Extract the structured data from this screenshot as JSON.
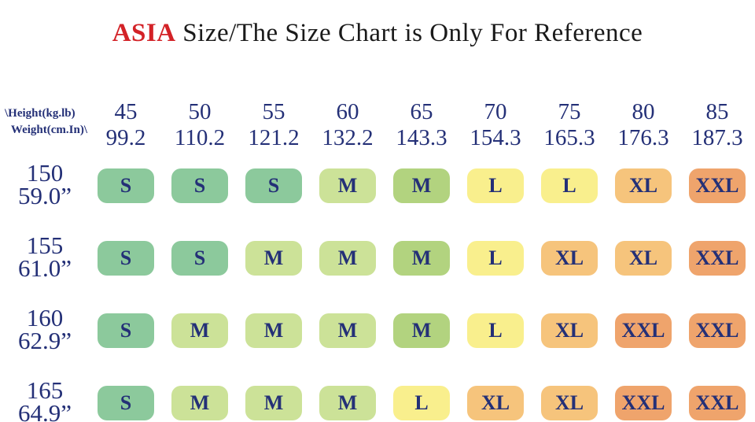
{
  "title": {
    "accent": "ASIA",
    "text": " Size/The Size Chart is Only For Reference"
  },
  "table": {
    "corner": {
      "line1": "\\Height(kg.lb)",
      "line2": "Weight(cm.In)\\"
    },
    "columns": [
      {
        "kg": "45",
        "lb": "99.2"
      },
      {
        "kg": "50",
        "lb": "110.2"
      },
      {
        "kg": "55",
        "lb": "121.2"
      },
      {
        "kg": "60",
        "lb": "132.2"
      },
      {
        "kg": "65",
        "lb": "143.3"
      },
      {
        "kg": "70",
        "lb": "154.3"
      },
      {
        "kg": "75",
        "lb": "165.3"
      },
      {
        "kg": "80",
        "lb": "176.3"
      },
      {
        "kg": "85",
        "lb": "187.3"
      }
    ],
    "rows": [
      {
        "cm": "150",
        "inch": "59.0”",
        "sizes": [
          "S",
          "S",
          "S",
          "M",
          "M",
          "L",
          "L",
          "XL",
          "XXL"
        ],
        "tones": [
          "s",
          "s",
          "s",
          "m",
          "m2",
          "l",
          "l",
          "xl",
          "xxl"
        ]
      },
      {
        "cm": "155",
        "inch": "61.0”",
        "sizes": [
          "S",
          "S",
          "M",
          "M",
          "M",
          "L",
          "XL",
          "XL",
          "XXL"
        ],
        "tones": [
          "s",
          "s",
          "m",
          "m",
          "m2",
          "l",
          "xl",
          "xl",
          "xxl"
        ]
      },
      {
        "cm": "160",
        "inch": "62.9”",
        "sizes": [
          "S",
          "M",
          "M",
          "M",
          "M",
          "L",
          "XL",
          "XXL",
          "XXL"
        ],
        "tones": [
          "s",
          "m",
          "m",
          "m",
          "m2",
          "l",
          "xl",
          "xxl",
          "xxl"
        ]
      },
      {
        "cm": "165",
        "inch": "64.9”",
        "sizes": [
          "S",
          "M",
          "M",
          "M",
          "L",
          "XL",
          "XL",
          "XXL",
          "XXL"
        ],
        "tones": [
          "s",
          "m",
          "m",
          "m",
          "l",
          "xl",
          "xl",
          "xxl",
          "xxl"
        ]
      }
    ]
  },
  "colors": {
    "s": "#8cc99c",
    "m": "#cce298",
    "m2": "#b2d37f",
    "l": "#f9ef8d",
    "xl": "#f6c47c",
    "xxl": "#efa46c",
    "navy": "#243077",
    "accent_red": "#d32227",
    "title_black": "#1a1a1a"
  },
  "chart_data": {
    "type": "table",
    "title": "ASIA Size/The Size Chart is Only For Reference",
    "corner_label_top": "\\Height(kg.lb)",
    "corner_label_bottom": "Weight(cm.In)\\",
    "weights_kg": [
      45,
      50,
      55,
      60,
      65,
      70,
      75,
      80,
      85
    ],
    "weights_lb": [
      99.2,
      110.2,
      121.2,
      132.2,
      143.3,
      154.3,
      165.3,
      176.3,
      187.3
    ],
    "heights_cm": [
      150,
      155,
      160,
      165
    ],
    "heights_in": [
      "59.0”",
      "61.0”",
      "62.9”",
      "64.9”"
    ],
    "size_matrix": [
      [
        "S",
        "S",
        "S",
        "M",
        "M",
        "L",
        "L",
        "XL",
        "XXL"
      ],
      [
        "S",
        "S",
        "M",
        "M",
        "M",
        "L",
        "XL",
        "XL",
        "XXL"
      ],
      [
        "S",
        "M",
        "M",
        "M",
        "M",
        "L",
        "XL",
        "XXL",
        "XXL"
      ],
      [
        "S",
        "M",
        "M",
        "M",
        "L",
        "XL",
        "XL",
        "XXL",
        "XXL"
      ]
    ],
    "legend_colors": {
      "S": "#8cc99c",
      "M": "#cce298",
      "L": "#f9ef8d",
      "XL": "#f6c47c",
      "XXL": "#efa46c"
    },
    "grid": false,
    "legend_position": "none"
  }
}
